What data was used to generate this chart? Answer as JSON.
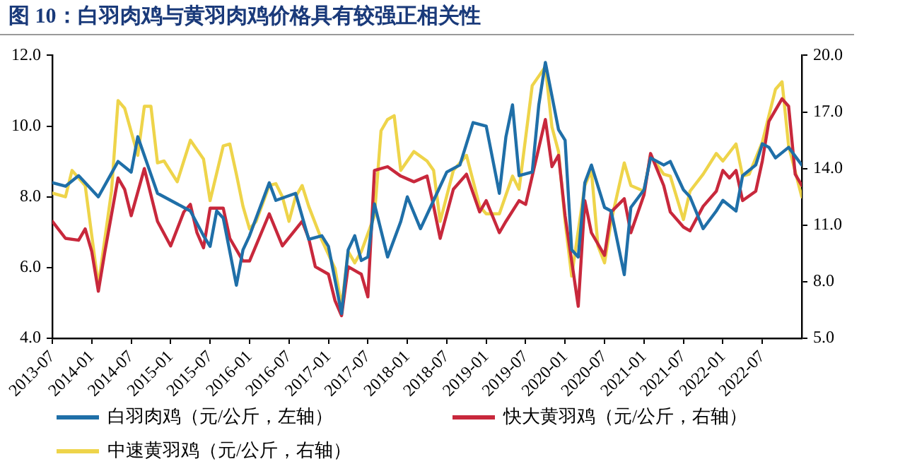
{
  "chart_data": {
    "type": "line",
    "title": "图 10：白羽肉鸡与黄羽肉鸡价格具有较强正相关性",
    "legend": "bottom",
    "grid": false,
    "marker": "none",
    "line_style": "solid",
    "xlim": [
      "2013-07",
      "2023-01"
    ],
    "xticks": [
      "2013-07",
      "2014-01",
      "2014-07",
      "2015-01",
      "2015-07",
      "2016-01",
      "2016-07",
      "2017-01",
      "2017-07",
      "2018-01",
      "2018-07",
      "2019-01",
      "2019-07",
      "2020-01",
      "2020-07",
      "2021-01",
      "2021-07",
      "2022-01",
      "2022-07"
    ],
    "ylim": [
      4,
      12
    ],
    "yticks": [
      {
        "value": 4,
        "label": "4.0"
      },
      {
        "value": 6,
        "label": "6.0"
      },
      {
        "value": 8,
        "label": "8.0"
      },
      {
        "value": 10,
        "label": "10.0"
      },
      {
        "value": 12,
        "label": "12.0"
      }
    ],
    "y2lim": [
      5,
      20
    ],
    "y2ticks": [
      {
        "value": 5,
        "label": "5.0"
      },
      {
        "value": 8,
        "label": "8.0"
      },
      {
        "value": 11,
        "label": "11.0"
      },
      {
        "value": 14,
        "label": "14.0"
      },
      {
        "value": 17,
        "label": "17.0"
      },
      {
        "value": 20,
        "label": "20.0"
      }
    ],
    "series": [
      {
        "name": "白羽肉鸡（元/公斤，左轴）",
        "color": "#1f6fa8",
        "x": [
          "2013-07",
          "2013-09",
          "2013-11",
          "2014-02",
          "2014-05",
          "2014-07",
          "2014-08",
          "2014-11",
          "2015-02",
          "2015-04",
          "2015-06",
          "2015-07",
          "2015-08",
          "2015-09",
          "2015-11",
          "2015-12",
          "2016-01",
          "2016-04",
          "2016-05",
          "2016-08",
          "2016-10",
          "2016-12",
          "2017-01",
          "2017-03",
          "2017-04",
          "2017-05",
          "2017-06",
          "2017-07",
          "2017-08",
          "2017-10",
          "2017-12",
          "2018-01",
          "2018-03",
          "2018-05",
          "2018-07",
          "2018-09",
          "2018-11",
          "2019-01",
          "2019-03",
          "2019-04",
          "2019-05",
          "2019-06",
          "2019-08",
          "2019-09",
          "2019-10",
          "2019-12",
          "2020-01",
          "2020-02",
          "2020-03",
          "2020-04",
          "2020-05",
          "2020-07",
          "2020-08",
          "2020-10",
          "2020-11",
          "2021-01",
          "2021-02",
          "2021-04",
          "2021-05",
          "2021-07",
          "2021-08",
          "2021-10",
          "2021-12",
          "2022-01",
          "2022-03",
          "2022-04",
          "2022-06",
          "2022-07",
          "2022-08",
          "2022-09",
          "2022-11",
          "2023-01"
        ],
        "values": [
          8.4,
          8.3,
          8.6,
          8.0,
          9.0,
          8.7,
          9.7,
          8.1,
          7.8,
          7.6,
          6.9,
          6.6,
          7.6,
          7.4,
          5.5,
          6.5,
          6.9,
          8.4,
          7.9,
          8.1,
          6.8,
          6.9,
          6.6,
          4.7,
          6.5,
          6.9,
          6.2,
          6.3,
          7.8,
          6.3,
          7.3,
          8.0,
          7.1,
          7.9,
          8.7,
          8.9,
          10.1,
          10.0,
          8.1,
          9.7,
          10.6,
          8.6,
          8.7,
          10.6,
          11.8,
          9.9,
          9.6,
          6.5,
          6.3,
          8.4,
          8.9,
          7.7,
          7.6,
          5.8,
          7.7,
          8.2,
          9.1,
          8.9,
          9.0,
          8.2,
          8.0,
          7.1,
          7.6,
          7.9,
          7.6,
          8.6,
          8.9,
          9.5,
          9.4,
          9.1,
          9.4,
          8.9
        ]
      },
      {
        "name": "快大黄羽鸡（元/公斤，右轴）",
        "color": "#c8283c",
        "axis": "y2",
        "x": [
          "2013-07",
          "2013-09",
          "2013-11",
          "2013-12",
          "2014-01",
          "2014-02",
          "2014-03",
          "2014-05",
          "2014-06",
          "2014-07",
          "2014-09",
          "2014-11",
          "2015-01",
          "2015-03",
          "2015-04",
          "2015-05",
          "2015-06",
          "2015-07",
          "2015-09",
          "2015-10",
          "2015-12",
          "2016-01",
          "2016-04",
          "2016-06",
          "2016-09",
          "2016-10",
          "2016-11",
          "2017-01",
          "2017-02",
          "2017-03",
          "2017-04",
          "2017-06",
          "2017-07",
          "2017-08",
          "2017-10",
          "2017-12",
          "2018-02",
          "2018-04",
          "2018-05",
          "2018-06",
          "2018-08",
          "2018-10",
          "2018-12",
          "2019-01",
          "2019-03",
          "2019-04",
          "2019-06",
          "2019-07",
          "2019-08",
          "2019-10",
          "2019-11",
          "2019-12",
          "2020-01",
          "2020-03",
          "2020-04",
          "2020-05",
          "2020-07",
          "2020-08",
          "2020-10",
          "2020-11",
          "2021-01",
          "2021-02",
          "2021-04",
          "2021-05",
          "2021-07",
          "2021-08",
          "2021-10",
          "2021-12",
          "2022-01",
          "2022-02",
          "2022-03",
          "2022-04",
          "2022-06",
          "2022-07",
          "2022-08",
          "2022-10",
          "2022-11",
          "2022-12",
          "2023-01"
        ],
        "values": [
          11.2,
          10.3,
          10.2,
          10.8,
          9.6,
          7.5,
          9.6,
          13.5,
          12.9,
          11.5,
          14.0,
          11.2,
          9.9,
          11.7,
          12.1,
          10.6,
          9.8,
          11.9,
          11.9,
          10.3,
          9.1,
          9.1,
          11.6,
          9.9,
          11.2,
          10.3,
          8.8,
          8.4,
          7.0,
          6.2,
          8.8,
          8.4,
          7.2,
          13.9,
          14.1,
          13.6,
          13.3,
          13.6,
          12.0,
          10.3,
          12.9,
          13.7,
          11.7,
          12.3,
          10.6,
          11.2,
          12.3,
          12.1,
          13.6,
          16.6,
          14.1,
          14.7,
          11.5,
          6.7,
          12.3,
          10.6,
          9.4,
          11.7,
          12.4,
          10.6,
          12.6,
          14.8,
          13.1,
          11.7,
          10.9,
          10.7,
          12.0,
          12.8,
          13.9,
          13.5,
          13.9,
          12.3,
          12.8,
          14.4,
          16.5,
          17.7,
          17.3,
          13.7,
          13.1
        ]
      },
      {
        "name": "中速黄羽鸡（元/公斤，右轴）",
        "color": "#eed44a",
        "axis": "y2",
        "x": [
          "2013-07",
          "2013-09",
          "2013-10",
          "2013-12",
          "2014-02",
          "2014-04",
          "2014-05",
          "2014-06",
          "2014-08",
          "2014-09",
          "2014-10",
          "2014-11",
          "2014-12",
          "2015-02",
          "2015-04",
          "2015-06",
          "2015-07",
          "2015-09",
          "2015-10",
          "2015-11",
          "2015-12",
          "2016-01",
          "2016-02",
          "2016-04",
          "2016-05",
          "2016-06",
          "2016-07",
          "2016-08",
          "2016-09",
          "2016-10",
          "2016-12",
          "2017-02",
          "2017-03",
          "2017-04",
          "2017-05",
          "2017-06",
          "2017-08",
          "2017-09",
          "2017-10",
          "2017-11",
          "2017-12",
          "2018-02",
          "2018-04",
          "2018-05",
          "2018-06",
          "2018-08",
          "2018-10",
          "2018-12",
          "2019-01",
          "2019-03",
          "2019-05",
          "2019-06",
          "2019-08",
          "2019-10",
          "2019-11",
          "2019-12",
          "2020-01",
          "2020-02",
          "2020-04",
          "2020-05",
          "2020-06",
          "2020-07",
          "2020-08",
          "2020-10",
          "2020-11",
          "2021-01",
          "2021-02",
          "2021-04",
          "2021-05",
          "2021-07",
          "2021-08",
          "2021-10",
          "2021-12",
          "2022-01",
          "2022-03",
          "2022-04",
          "2022-05",
          "2022-07",
          "2022-09",
          "2022-10",
          "2022-11",
          "2023-01"
        ],
        "values": [
          12.7,
          12.5,
          13.9,
          13.1,
          7.8,
          12.8,
          17.6,
          17.2,
          14.7,
          17.3,
          17.3,
          14.3,
          14.4,
          13.3,
          15.5,
          14.5,
          12.3,
          15.2,
          15.3,
          13.7,
          12.0,
          10.8,
          11.2,
          13.1,
          13.2,
          12.5,
          11.2,
          12.5,
          13.1,
          12.0,
          10.2,
          8.7,
          6.7,
          9.6,
          9.0,
          9.6,
          11.5,
          16.0,
          16.6,
          16.8,
          13.9,
          14.9,
          14.4,
          13.9,
          11.2,
          13.9,
          14.7,
          12.0,
          11.6,
          11.6,
          13.6,
          12.9,
          18.4,
          19.4,
          16.2,
          14.9,
          11.2,
          8.3,
          13.1,
          13.9,
          9.9,
          9.0,
          11.2,
          14.3,
          13.1,
          12.8,
          14.7,
          13.7,
          13.6,
          11.3,
          12.8,
          13.7,
          14.8,
          14.4,
          15.3,
          13.6,
          13.7,
          15.4,
          18.2,
          18.6,
          15.2,
          12.5
        ]
      }
    ]
  }
}
